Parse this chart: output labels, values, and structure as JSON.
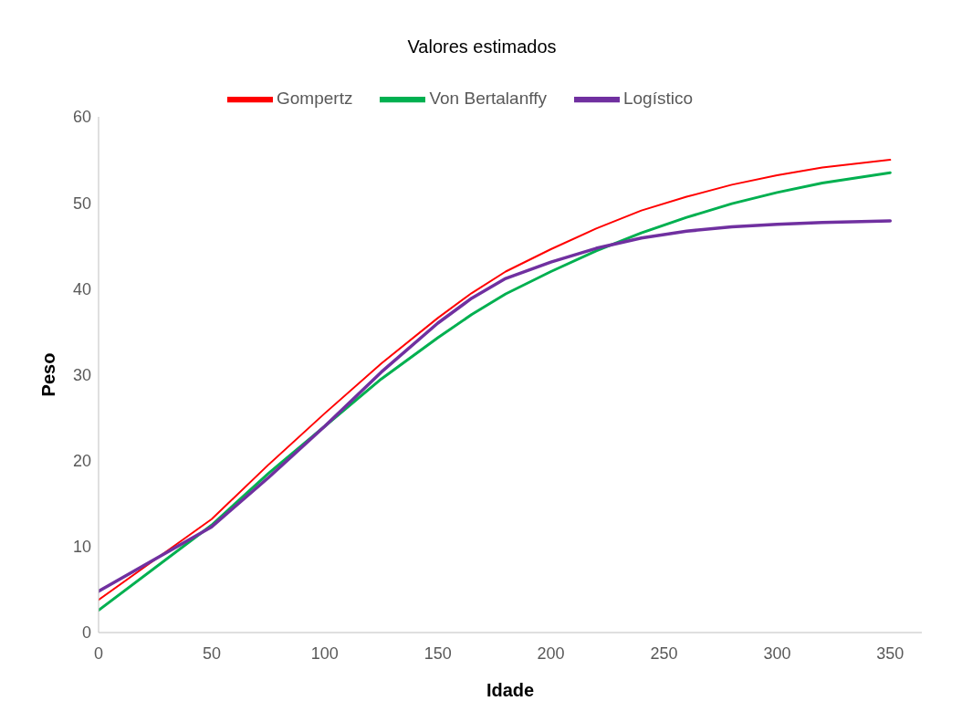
{
  "chart_data": {
    "type": "line",
    "title": "Valores estimados",
    "xlabel": "Idade",
    "ylabel": "Peso",
    "x": [
      0,
      50,
      75,
      100,
      125,
      150,
      165,
      180,
      200,
      220,
      240,
      260,
      280,
      300,
      320,
      350
    ],
    "series": [
      {
        "name": "Gompertz",
        "color": "#ff0000",
        "values": [
          3.8,
          13.2,
          19.5,
          25.5,
          31.3,
          36.6,
          39.5,
          42.0,
          44.6,
          47.0,
          49.1,
          50.7,
          52.1,
          53.2,
          54.1,
          55.0
        ]
      },
      {
        "name": "Von Bertalanffy",
        "color": "#00b050",
        "values": [
          2.6,
          12.5,
          18.5,
          24.0,
          29.5,
          34.3,
          37.0,
          39.4,
          42.0,
          44.4,
          46.5,
          48.3,
          49.9,
          51.2,
          52.3,
          53.5
        ]
      },
      {
        "name": "Logístico",
        "color": "#7030a0",
        "values": [
          4.8,
          12.3,
          18.0,
          24.0,
          30.3,
          36.0,
          38.9,
          41.2,
          43.1,
          44.7,
          45.9,
          46.7,
          47.2,
          47.5,
          47.7,
          47.9
        ]
      }
    ],
    "xlim": [
      0,
      364
    ],
    "xticks": [
      0,
      50,
      100,
      150,
      200,
      250,
      300,
      350
    ],
    "ylim": [
      0,
      60
    ],
    "yticks": [
      0,
      10,
      20,
      30,
      40,
      50,
      60
    ],
    "grid": false,
    "legend": "top",
    "marker": "none",
    "line_style": "solid"
  }
}
